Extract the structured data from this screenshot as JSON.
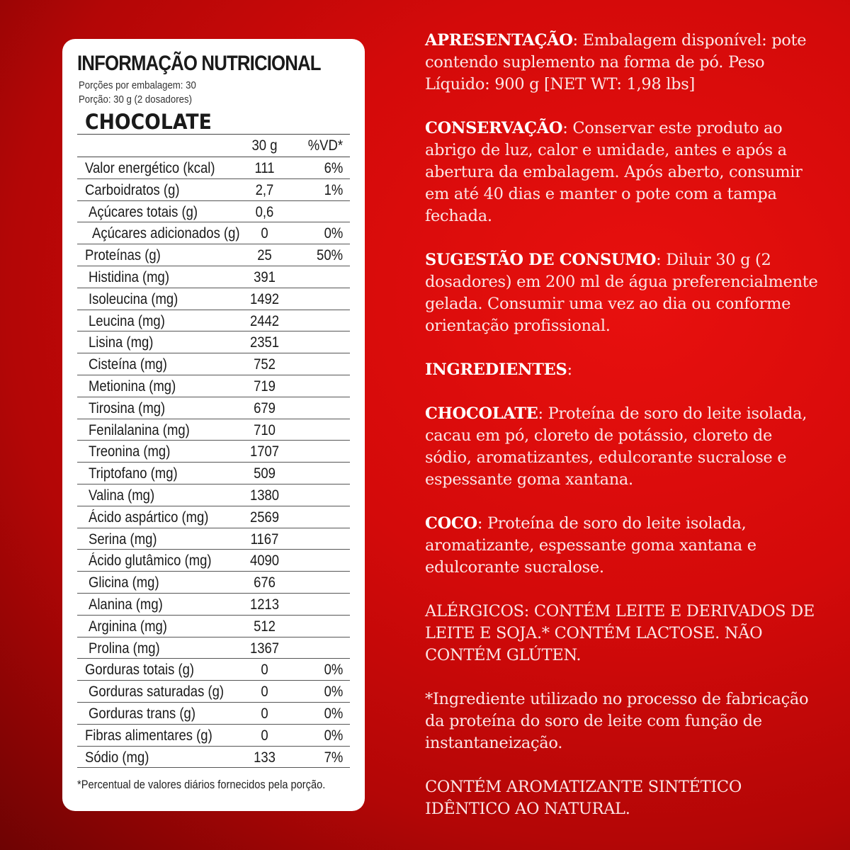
{
  "label": {
    "title": "INFORMAÇÃO NUTRICIONAL",
    "servings": "Porções por embalagem: 30",
    "portion": "Porção: 30 g (2 dosadores)",
    "flavor": "CHOCOLATE",
    "col_amount": "30 g",
    "col_vd": "%VD*",
    "rows": [
      {
        "label": "Valor energético (kcal)",
        "value": "111",
        "vd": "6%",
        "indent": 0
      },
      {
        "label": "Carboidratos (g)",
        "value": "2,7",
        "vd": "1%",
        "indent": 0
      },
      {
        "label": "Açúcares totais (g)",
        "value": "0,6",
        "vd": "",
        "indent": 1
      },
      {
        "label": "Açúcares adicionados (g)",
        "value": "0",
        "vd": "0%",
        "indent": 2
      },
      {
        "label": "Proteínas (g)",
        "value": "25",
        "vd": "50%",
        "indent": 0
      },
      {
        "label": "Histidina (mg)",
        "value": "391",
        "vd": "",
        "indent": 1
      },
      {
        "label": "Isoleucina (mg)",
        "value": "1492",
        "vd": "",
        "indent": 1
      },
      {
        "label": "Leucina (mg)",
        "value": "2442",
        "vd": "",
        "indent": 1
      },
      {
        "label": "Lisina (mg)",
        "value": "2351",
        "vd": "",
        "indent": 1
      },
      {
        "label": "Cisteína (mg)",
        "value": "752",
        "vd": "",
        "indent": 1
      },
      {
        "label": "Metionina (mg)",
        "value": "719",
        "vd": "",
        "indent": 1
      },
      {
        "label": "Tirosina (mg)",
        "value": "679",
        "vd": "",
        "indent": 1
      },
      {
        "label": "Fenilalanina (mg)",
        "value": "710",
        "vd": "",
        "indent": 1
      },
      {
        "label": "Treonina (mg)",
        "value": "1707",
        "vd": "",
        "indent": 1
      },
      {
        "label": "Triptofano (mg)",
        "value": "509",
        "vd": "",
        "indent": 1
      },
      {
        "label": "Valina (mg)",
        "value": "1380",
        "vd": "",
        "indent": 1
      },
      {
        "label": "Ácido aspártico (mg)",
        "value": "2569",
        "vd": "",
        "indent": 1
      },
      {
        "label": "Serina (mg)",
        "value": "1167",
        "vd": "",
        "indent": 1
      },
      {
        "label": "Ácido glutâmico (mg)",
        "value": "4090",
        "vd": "",
        "indent": 1
      },
      {
        "label": "Glicina (mg)",
        "value": "676",
        "vd": "",
        "indent": 1
      },
      {
        "label": "Alanina (mg)",
        "value": "1213",
        "vd": "",
        "indent": 1
      },
      {
        "label": "Arginina (mg)",
        "value": "512",
        "vd": "",
        "indent": 1
      },
      {
        "label": "Prolina (mg)",
        "value": "1367",
        "vd": "",
        "indent": 1
      },
      {
        "label": "Gorduras totais (g)",
        "value": "0",
        "vd": "0%",
        "indent": 0
      },
      {
        "label": "Gorduras saturadas (g)",
        "value": "0",
        "vd": "0%",
        "indent": 1
      },
      {
        "label": "Gorduras trans (g)",
        "value": "0",
        "vd": "0%",
        "indent": 1
      },
      {
        "label": "Fibras alimentares (g)",
        "value": "0",
        "vd": "0%",
        "indent": 0
      },
      {
        "label": "Sódio (mg)",
        "value": "133",
        "vd": "7%",
        "indent": 0
      }
    ],
    "footnote": "*Percentual de valores diários fornecidos pela porção."
  },
  "info": [
    {
      "heading": "APRESENTAÇÃO",
      "text": ": Embalagem disponível: pote contendo suplemento na forma de pó. Peso Líquido: 900 g [NET WT: 1,98 lbs]"
    },
    {
      "heading": "CONSERVAÇÃO",
      "text": ": Conservar este produto ao abrigo de luz, calor e umidade, antes e após a abertura da embalagem. Após aberto, consumir em até 40 dias e manter o pote com a tampa fechada."
    },
    {
      "heading": "SUGESTÃO DE CONSUMO",
      "text": ": Diluir 30 g (2 dosadores) em 200 ml de água preferencialmente gelada. Consumir uma vez ao dia ou conforme orientação profissional."
    },
    {
      "heading": "INGREDIENTES",
      "text": ":"
    },
    {
      "heading": "CHOCOLATE",
      "text": ": Proteína de soro do leite isolada, cacau em pó, cloreto de potássio, cloreto de sódio, aromatizantes, edulcorante sucralose e espessante goma xantana."
    },
    {
      "heading": "COCO",
      "text": ": Proteína de soro do leite isolada, aromatizante, espessante goma xantana e edulcorante sucralose."
    },
    {
      "heading": "",
      "text": "ALÉRGICOS: CONTÉM LEITE E DERIVADOS DE LEITE E SOJA.* CONTÉM LACTOSE. NÃO CONTÉM GLÚTEN."
    },
    {
      "heading": "",
      "text": " *Ingrediente utilizado no processo de fabricação da proteína do soro de leite com função de instantaneização."
    },
    {
      "heading": "",
      "text": "CONTÉM AROMATIZANTE SINTÉTICO IDÊNTICO AO NATURAL."
    }
  ]
}
